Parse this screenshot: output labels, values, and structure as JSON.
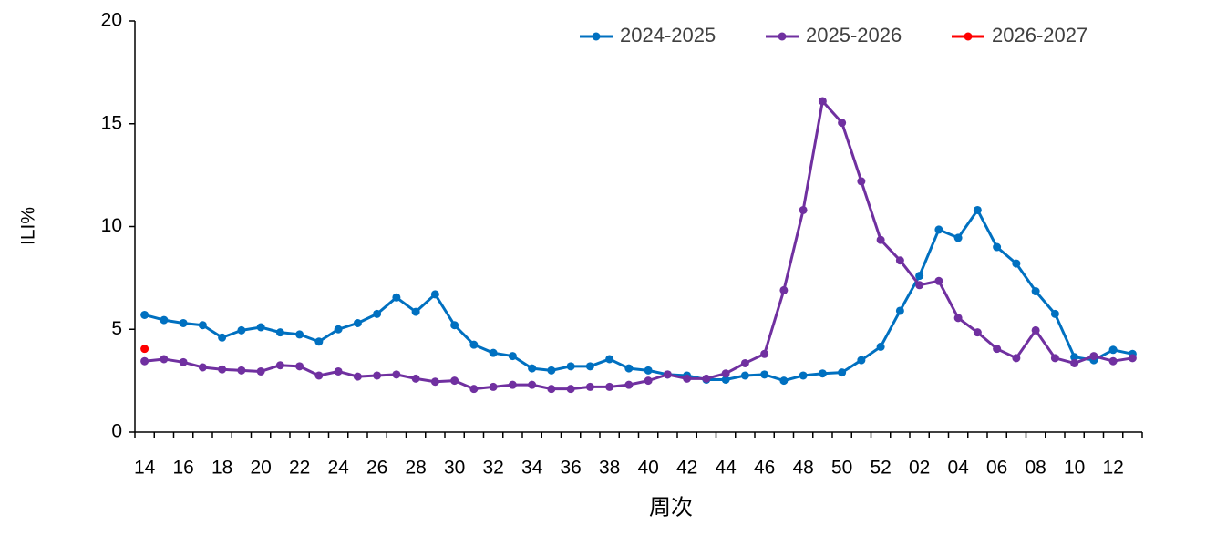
{
  "chart_data": {
    "type": "line",
    "ylabel": "ILI%",
    "xlabel": "周次",
    "categories": [
      "14",
      null,
      "16",
      null,
      "18",
      null,
      "20",
      null,
      "22",
      null,
      "24",
      null,
      "26",
      null,
      "28",
      null,
      "30",
      null,
      "32",
      null,
      "34",
      null,
      "36",
      null,
      "38",
      null,
      "40",
      null,
      "42",
      null,
      "44",
      null,
      "46",
      null,
      "48",
      null,
      "50",
      null,
      "52",
      null,
      "02",
      null,
      "04",
      null,
      "06",
      null,
      "08",
      null,
      "10",
      null,
      "12",
      null
    ],
    "series": [
      {
        "name": "2024-2025",
        "color": "#0070c0",
        "values": [
          5.7,
          5.45,
          5.3,
          5.2,
          4.6,
          4.95,
          5.1,
          4.85,
          4.75,
          4.4,
          5.0,
          5.3,
          5.75,
          6.55,
          5.85,
          6.7,
          5.2,
          4.25,
          3.85,
          3.7,
          3.1,
          3.0,
          3.2,
          3.2,
          3.55,
          3.1,
          3.0,
          2.8,
          2.75,
          2.55,
          2.55,
          2.75,
          2.8,
          2.5,
          2.75,
          2.85,
          2.9,
          3.5,
          4.15,
          5.9,
          7.6,
          9.85,
          9.45,
          10.8,
          9.0,
          8.2,
          6.85,
          5.75,
          3.65,
          3.5,
          4.0,
          3.8
        ]
      },
      {
        "name": "2025-2026",
        "color": "#7030a0",
        "values": [
          3.45,
          3.55,
          3.4,
          3.15,
          3.05,
          3.0,
          2.95,
          3.25,
          3.2,
          2.75,
          2.95,
          2.7,
          2.75,
          2.8,
          2.6,
          2.45,
          2.5,
          2.1,
          2.2,
          2.3,
          2.3,
          2.1,
          2.1,
          2.2,
          2.2,
          2.3,
          2.5,
          2.8,
          2.6,
          2.6,
          2.85,
          3.35,
          3.8,
          6.9,
          10.8,
          16.1,
          15.05,
          12.2,
          9.35,
          8.35,
          7.15,
          7.35,
          5.55,
          4.85,
          4.05,
          3.6,
          4.95,
          3.6,
          3.35,
          3.7,
          3.45,
          3.6
        ]
      },
      {
        "name": "2026-2027",
        "color": "#ff0000",
        "values": [
          4.05,
          null,
          null,
          null,
          null,
          null,
          null,
          null,
          null,
          null,
          null,
          null,
          null,
          null,
          null,
          null,
          null,
          null,
          null,
          null,
          null,
          null,
          null,
          null,
          null,
          null,
          null,
          null,
          null,
          null,
          null,
          null,
          null,
          null,
          null,
          null,
          null,
          null,
          null,
          null,
          null,
          null,
          null,
          null,
          null,
          null,
          null,
          null,
          null,
          null,
          null,
          null
        ]
      }
    ],
    "ylim": [
      0,
      20
    ],
    "yticks": [
      0,
      5,
      10,
      15,
      20
    ],
    "grid": false,
    "legend": "top-right"
  }
}
